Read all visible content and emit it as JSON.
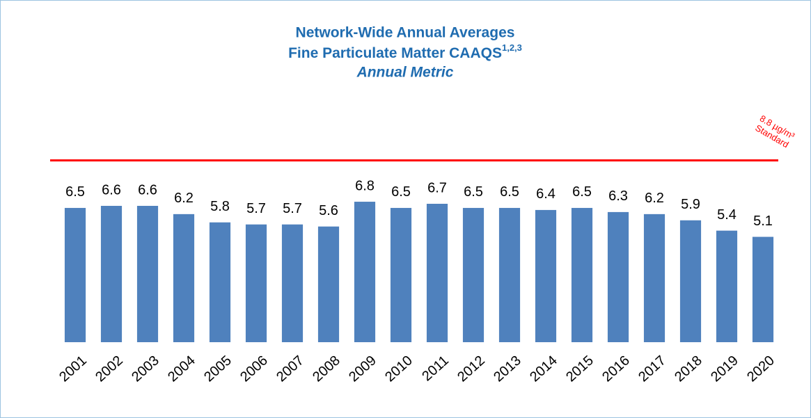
{
  "chart_data": {
    "type": "bar",
    "title": [
      "Network-Wide Annual Averages",
      "Fine Particulate Matter CAAQS"
    ],
    "title_superscript": "1,2,3",
    "subtitle": "Annual Metric",
    "categories": [
      "2001",
      "2002",
      "2003",
      "2004",
      "2005",
      "2006",
      "2007",
      "2008",
      "2009",
      "2010",
      "2011",
      "2012",
      "2013",
      "2014",
      "2015",
      "2016",
      "2017",
      "2018",
      "2019",
      "2020"
    ],
    "values": [
      6.5,
      6.6,
      6.6,
      6.2,
      5.8,
      5.7,
      5.7,
      5.6,
      6.8,
      6.5,
      6.7,
      6.5,
      6.5,
      6.4,
      6.5,
      6.3,
      6.2,
      5.9,
      5.4,
      5.1
    ],
    "color": "#4f81bd",
    "ylim": [
      0,
      10
    ],
    "reference_line": {
      "value": 8.8,
      "label": "8.8 µg/m³",
      "text": "Standard",
      "color": "#ff0000"
    }
  }
}
